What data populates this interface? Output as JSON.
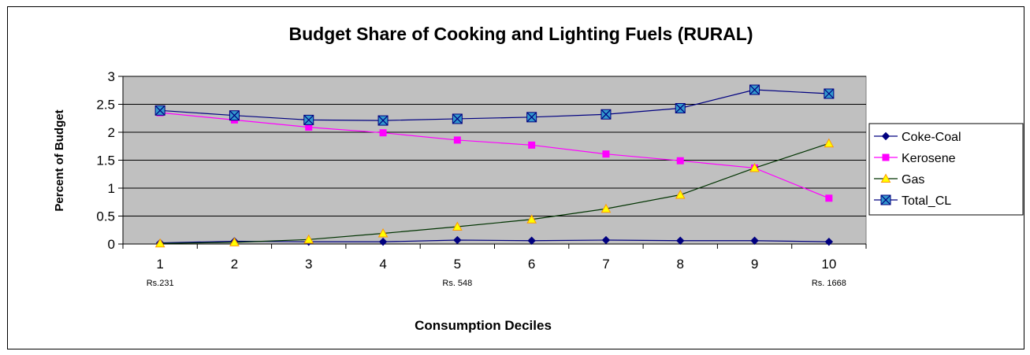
{
  "chart_data": {
    "type": "line",
    "title": "Budget Share of Cooking and Lighting Fuels (RURAL)",
    "xlabel": "Consumption Deciles",
    "ylabel": "Percent of Budget",
    "categories": [
      "1",
      "2",
      "3",
      "4",
      "5",
      "6",
      "7",
      "8",
      "9",
      "10"
    ],
    "ylim": [
      0,
      3
    ],
    "yticks": [
      "0",
      "0.5",
      "1",
      "1.5",
      "2",
      "2.5",
      "3"
    ],
    "category_notes": [
      {
        "category": "1",
        "text": "Rs.231"
      },
      {
        "category": "5",
        "text": "Rs. 548"
      },
      {
        "category": "10",
        "text": "Rs. 1668"
      }
    ],
    "grid": true,
    "plot_background": "#C0C0C0",
    "legend_position": "right",
    "series": [
      {
        "name": "Coke-Coal",
        "color": "#000080",
        "marker": "diamond",
        "values": [
          0.02,
          0.05,
          0.04,
          0.04,
          0.07,
          0.06,
          0.07,
          0.06,
          0.06,
          0.04
        ]
      },
      {
        "name": "Kerosene",
        "color": "#FF00FF",
        "marker": "square",
        "values": [
          2.35,
          2.22,
          2.09,
          1.99,
          1.86,
          1.77,
          1.61,
          1.49,
          1.36,
          0.82
        ]
      },
      {
        "name": "Gas",
        "color": "#003300",
        "marker": "triangle",
        "marker_fill": "#FFFF00",
        "marker_stroke": "#FF9900",
        "values": [
          0.01,
          0.03,
          0.08,
          0.19,
          0.31,
          0.44,
          0.63,
          0.88,
          1.36,
          1.8
        ]
      },
      {
        "name": "Total_CL",
        "color": "#000080",
        "marker": "boxed-x",
        "marker_fill": "#3399CC",
        "values": [
          2.39,
          2.3,
          2.22,
          2.21,
          2.24,
          2.27,
          2.32,
          2.43,
          2.76,
          2.69
        ]
      }
    ]
  }
}
